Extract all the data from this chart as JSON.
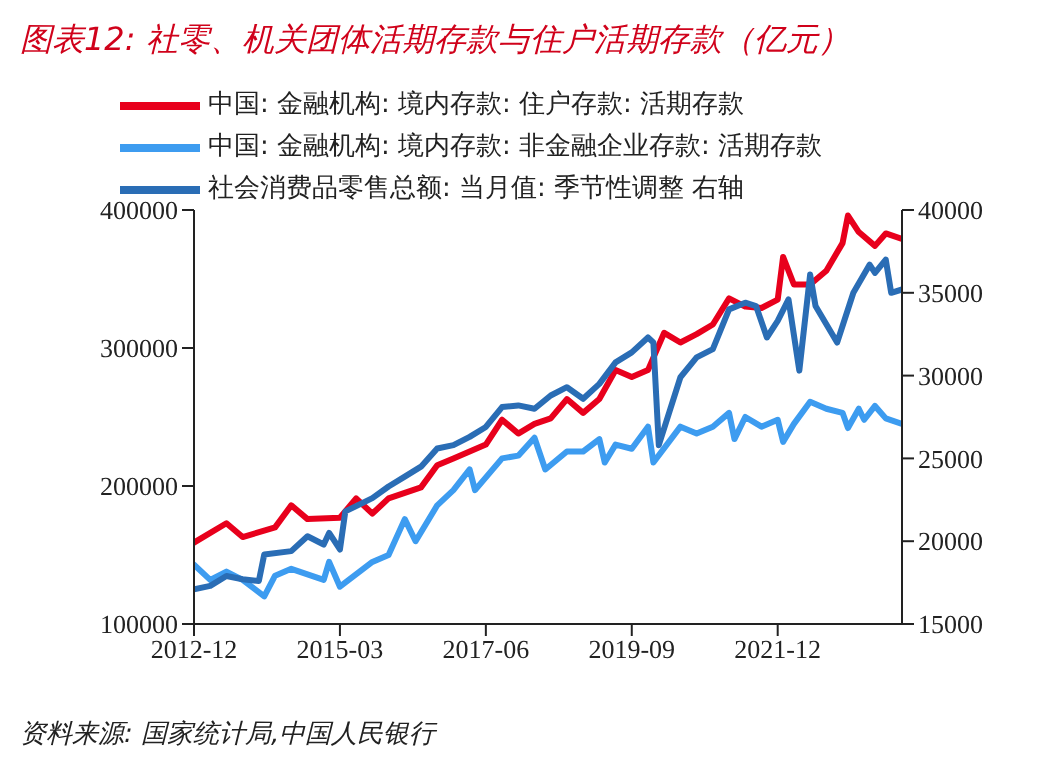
{
  "chart_data": {
    "type": "line",
    "title": "图表12: 社零、机关团体活期存款与住户活期存款（亿元）",
    "xlim": [
      "2012-12",
      "2023-11"
    ],
    "xticks": [
      "2012-12",
      "2015-03",
      "2017-06",
      "2019-09",
      "2021-12"
    ],
    "ylim": [
      100000,
      400000
    ],
    "yticks": [
      100000,
      200000,
      300000,
      400000
    ],
    "y2lim": [
      15000,
      40000
    ],
    "y2ticks": [
      15000,
      20000,
      25000,
      30000,
      35000,
      40000
    ],
    "legend": "top",
    "line_style": "solid",
    "marker": "none",
    "annotations": [
      "资料来源: 国家统计局,中国人民银行"
    ],
    "series": [
      {
        "name": "中国: 金融机构: 境内存款: 住户存款: 活期存款",
        "color": "#e8001c",
        "x": [
          "2012-12",
          "2013-06",
          "2013-09",
          "2014-03",
          "2014-06",
          "2014-09",
          "2015-03",
          "2015-06",
          "2015-09",
          "2015-12",
          "2016-06",
          "2016-09",
          "2016-12",
          "2017-06",
          "2017-09",
          "2017-12",
          "2018-03",
          "2018-06",
          "2018-09",
          "2018-12",
          "2019-03",
          "2019-06",
          "2019-09",
          "2019-12",
          "2020-03",
          "2020-06",
          "2020-09",
          "2020-12",
          "2021-03",
          "2021-06",
          "2021-09",
          "2021-12",
          "2022-01",
          "2022-03",
          "2022-06",
          "2022-09",
          "2022-12",
          "2023-01",
          "2023-03",
          "2023-06",
          "2023-08",
          "2023-11"
        ],
        "values": [
          159000,
          173000,
          163000,
          170000,
          186000,
          176000,
          177000,
          191000,
          180000,
          191000,
          199000,
          215000,
          220000,
          230000,
          248000,
          238000,
          245000,
          249000,
          263000,
          253000,
          263000,
          284000,
          279000,
          284000,
          311000,
          304000,
          310000,
          317000,
          336000,
          330000,
          329000,
          335000,
          366000,
          346000,
          346000,
          356000,
          376000,
          396000,
          384000,
          374000,
          383000,
          379000
        ]
      },
      {
        "name": "中国: 金融机构: 境内存款: 非金融企业存款: 活期存款",
        "color": "#3d9cf0",
        "x": [
          "2012-12",
          "2013-03",
          "2013-06",
          "2013-09",
          "2014-01",
          "2014-03",
          "2014-06",
          "2014-12",
          "2015-01",
          "2015-03",
          "2015-09",
          "2015-12",
          "2016-03",
          "2016-05",
          "2016-09",
          "2016-12",
          "2017-03",
          "2017-04",
          "2017-09",
          "2017-12",
          "2018-03",
          "2018-05",
          "2018-09",
          "2018-12",
          "2019-03",
          "2019-04",
          "2019-06",
          "2019-09",
          "2019-12",
          "2020-01",
          "2020-06",
          "2020-09",
          "2020-12",
          "2021-03",
          "2021-04",
          "2021-06",
          "2021-09",
          "2021-12",
          "2022-01",
          "2022-03",
          "2022-06",
          "2022-09",
          "2022-12",
          "2023-01",
          "2023-03",
          "2023-04",
          "2023-06",
          "2023-08",
          "2023-11"
        ],
        "values": [
          143000,
          132000,
          138000,
          132000,
          120000,
          135000,
          140000,
          132000,
          145000,
          127000,
          145000,
          150000,
          176000,
          160000,
          186000,
          197000,
          212000,
          197000,
          220000,
          222000,
          235000,
          212000,
          225000,
          225000,
          234000,
          217000,
          230000,
          227000,
          243000,
          217000,
          243000,
          238000,
          243000,
          253000,
          234000,
          250000,
          243000,
          248000,
          232000,
          245000,
          261000,
          256000,
          253000,
          242000,
          256000,
          248000,
          258000,
          249000,
          245000
        ]
      },
      {
        "name": "社会消费品零售总额: 当月值: 季节性调整  右轴",
        "color": "#2a6db5",
        "axis": "y2",
        "x": [
          "2012-12",
          "2013-03",
          "2013-06",
          "2013-09",
          "2013-12",
          "2014-01",
          "2014-06",
          "2014-09",
          "2014-12",
          "2015-01",
          "2015-03",
          "2015-04",
          "2015-09",
          "2015-12",
          "2016-03",
          "2016-06",
          "2016-09",
          "2016-12",
          "2017-03",
          "2017-06",
          "2017-09",
          "2017-12",
          "2018-03",
          "2018-06",
          "2018-09",
          "2018-12",
          "2019-03",
          "2019-06",
          "2019-09",
          "2019-12",
          "2020-01",
          "2020-02",
          "2020-06",
          "2020-09",
          "2020-12",
          "2021-03",
          "2021-06",
          "2021-08",
          "2021-10",
          "2021-12",
          "2022-02",
          "2022-04",
          "2022-06",
          "2022-07",
          "2022-11",
          "2023-02",
          "2023-05",
          "2023-06",
          "2023-08",
          "2023-09",
          "2023-11"
        ],
        "values": [
          17100,
          17300,
          17900,
          17700,
          17600,
          19200,
          19400,
          20300,
          19800,
          20500,
          19500,
          21800,
          22600,
          23300,
          23900,
          24500,
          25600,
          25800,
          26300,
          26900,
          28100,
          28200,
          28000,
          28800,
          29300,
          28600,
          29500,
          30800,
          31400,
          32300,
          32000,
          25800,
          29900,
          31100,
          31600,
          34000,
          34400,
          34200,
          32300,
          33300,
          34600,
          30300,
          36100,
          34200,
          32000,
          35000,
          36700,
          36200,
          37000,
          35000,
          35200
        ]
      }
    ]
  }
}
